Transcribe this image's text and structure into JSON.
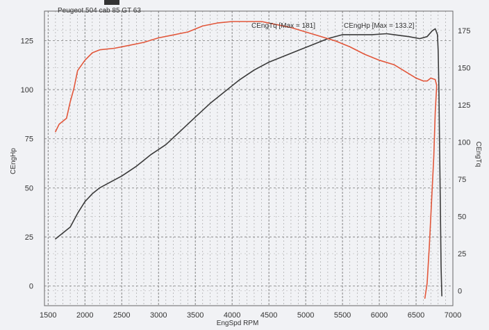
{
  "chart_data": {
    "type": "line",
    "title": "Peugeot  504  cab  85 GT 63",
    "xlabel": "EngSpd RPM",
    "ylabel_left": "CEngHp",
    "ylabel_right": "CEngTq",
    "xlim": [
      1450,
      7000
    ],
    "ylim_left": [
      -10,
      140
    ],
    "ylim_right": [
      -10,
      188
    ],
    "x_ticks": [
      "1500",
      "2000",
      "2500",
      "3000",
      "3500",
      "4000",
      "4500",
      "5000",
      "5500",
      "6000",
      "6500",
      "7000"
    ],
    "y_left_ticks": [
      "0",
      "25",
      "50",
      "75",
      "100",
      "125"
    ],
    "y_right_ticks": [
      "0",
      "25",
      "50",
      "75",
      "100",
      "125",
      "150",
      "175"
    ],
    "grid": true,
    "series": [
      {
        "name": "CEngHp",
        "annotation": "CEngHp [Max = 133.2]",
        "axis": "left",
        "color": "#3a3a3a",
        "points": [
          [
            1600,
            24
          ],
          [
            1700,
            27
          ],
          [
            1800,
            30
          ],
          [
            1900,
            37
          ],
          [
            2000,
            43
          ],
          [
            2100,
            47
          ],
          [
            2200,
            50
          ],
          [
            2300,
            52
          ],
          [
            2500,
            56
          ],
          [
            2700,
            61
          ],
          [
            2900,
            67
          ],
          [
            3100,
            72
          ],
          [
            3300,
            79
          ],
          [
            3500,
            86
          ],
          [
            3700,
            93
          ],
          [
            3900,
            99
          ],
          [
            4100,
            105
          ],
          [
            4300,
            110
          ],
          [
            4500,
            114
          ],
          [
            4700,
            117
          ],
          [
            4900,
            120
          ],
          [
            5100,
            123
          ],
          [
            5300,
            126
          ],
          [
            5500,
            128
          ],
          [
            5700,
            128
          ],
          [
            5900,
            128
          ],
          [
            6100,
            128.5
          ],
          [
            6200,
            128
          ],
          [
            6400,
            127
          ],
          [
            6550,
            126
          ],
          [
            6650,
            127
          ],
          [
            6720,
            130
          ],
          [
            6760,
            131
          ],
          [
            6790,
            128
          ],
          [
            6800,
            120
          ],
          [
            6810,
            100
          ],
          [
            6820,
            70
          ],
          [
            6830,
            40
          ],
          [
            6840,
            10
          ],
          [
            6850,
            -5
          ]
        ]
      },
      {
        "name": "CEngTq",
        "annotation": "CEngTq [Max = 181]",
        "axis": "right",
        "color": "#e2563a",
        "points": [
          [
            1600,
            107
          ],
          [
            1650,
            112
          ],
          [
            1700,
            114
          ],
          [
            1750,
            116
          ],
          [
            1800,
            127
          ],
          [
            1850,
            136
          ],
          [
            1900,
            148
          ],
          [
            2000,
            155
          ],
          [
            2100,
            160
          ],
          [
            2200,
            162
          ],
          [
            2400,
            163
          ],
          [
            2600,
            165
          ],
          [
            2800,
            167
          ],
          [
            3000,
            170
          ],
          [
            3200,
            172
          ],
          [
            3400,
            174
          ],
          [
            3600,
            178
          ],
          [
            3800,
            180
          ],
          [
            4000,
            181
          ],
          [
            4200,
            181
          ],
          [
            4400,
            181
          ],
          [
            4600,
            179
          ],
          [
            4800,
            177
          ],
          [
            5000,
            174
          ],
          [
            5200,
            171
          ],
          [
            5400,
            168
          ],
          [
            5600,
            164
          ],
          [
            5800,
            159
          ],
          [
            6000,
            155
          ],
          [
            6200,
            152
          ],
          [
            6400,
            146
          ],
          [
            6500,
            143
          ],
          [
            6600,
            141
          ],
          [
            6650,
            141
          ],
          [
            6700,
            143
          ],
          [
            6760,
            142
          ],
          [
            6780,
            138
          ],
          [
            6760,
            120
          ],
          [
            6740,
            90
          ],
          [
            6710,
            60
          ],
          [
            6680,
            30
          ],
          [
            6650,
            5
          ],
          [
            6620,
            -5
          ]
        ]
      }
    ]
  }
}
